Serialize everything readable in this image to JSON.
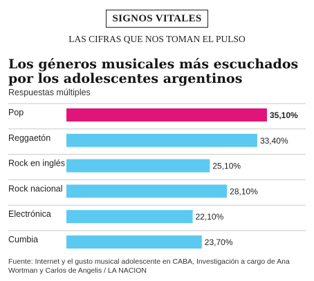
{
  "header": {
    "kicker": "SIGNOS VITALES",
    "subtitle": "LAS CIFRAS QUE NOS TOMAN EL PULSO"
  },
  "chart_data": {
    "type": "bar",
    "title": "Los géneros musicales más escuchados por los adolescentes argentinos",
    "note": "Respuestas múltiples",
    "categories": [
      "Pop",
      "Reggaetón",
      "Rock en inglés",
      "Rock nacional",
      "Electrónica",
      "Cumbia"
    ],
    "values": [
      35.1,
      33.4,
      25.1,
      28.1,
      22.1,
      23.7
    ],
    "value_labels": [
      "35,10%",
      "33,40%",
      "25,10%",
      "28,10%",
      "22,10%",
      "23,70%"
    ],
    "highlight_index": 0,
    "colors": {
      "highlight": "#e0157a",
      "default": "#5ccaf0",
      "separator": "#c8c8c8"
    },
    "xlim": [
      0,
      35.1
    ],
    "grid": false,
    "legend": "none"
  },
  "source": "Fuente: Internet y el gusto musical adolescente en CABA, Investigación a cargo de Ana Wortman y Carlos de Angelis / LA NACION"
}
